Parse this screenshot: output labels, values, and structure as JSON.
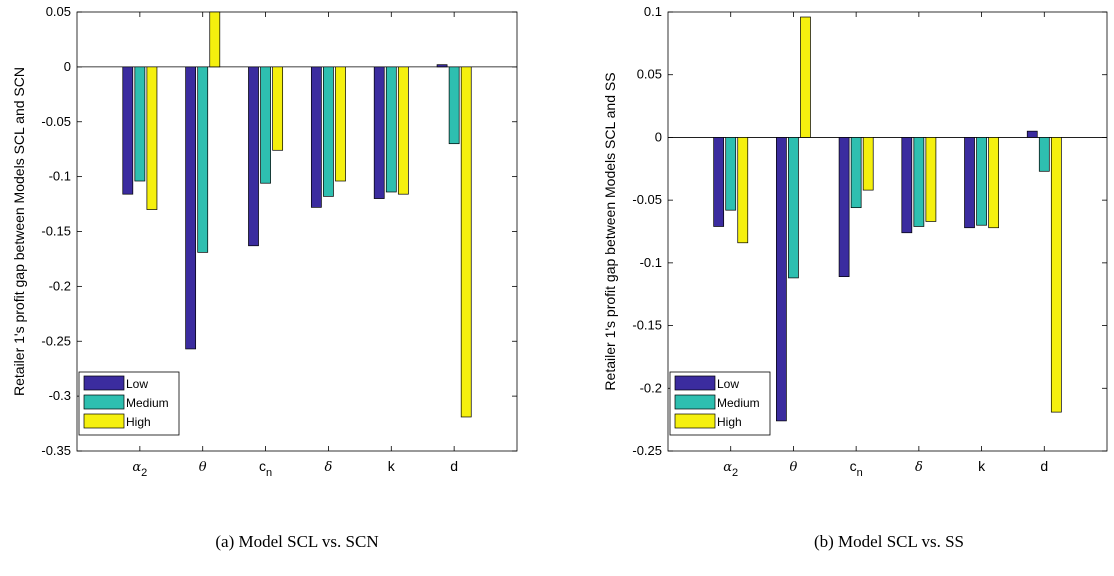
{
  "chart_data": [
    {
      "type": "bar",
      "ylabel": "Retailer 1's profit gap between Models SCL and SCN",
      "caption": "(a) Model SCL vs. SCN",
      "ylim": [
        -0.35,
        0.05
      ],
      "yticks": [
        0.05,
        0,
        -0.05,
        -0.1,
        -0.15,
        -0.2,
        -0.25,
        -0.3,
        -0.35
      ],
      "ytick_labels": [
        "0.05",
        "0",
        "-0.05",
        "-0.1",
        "-0.15",
        "-0.2",
        "-0.25",
        "-0.3",
        "-0.35"
      ],
      "categories": [
        {
          "base": "α",
          "sub": "2",
          "style": "math"
        },
        {
          "base": "θ",
          "sub": "",
          "style": "math"
        },
        {
          "base": "c",
          "sub": "n",
          "style": "sans"
        },
        {
          "base": "δ",
          "sub": "",
          "style": "math"
        },
        {
          "base": "k",
          "sub": "",
          "style": "sans"
        },
        {
          "base": "d",
          "sub": "",
          "style": "sans"
        }
      ],
      "series": [
        {
          "name": "Low",
          "color": "#3b2c9f",
          "values": [
            -0.116,
            -0.257,
            -0.163,
            -0.128,
            -0.12,
            0.002
          ]
        },
        {
          "name": "Medium",
          "color": "#2ebfb0",
          "values": [
            -0.104,
            -0.169,
            -0.106,
            -0.118,
            -0.114,
            -0.07
          ]
        },
        {
          "name": "High",
          "color": "#f5f00e",
          "values": [
            -0.13,
            0.05,
            -0.076,
            -0.104,
            -0.116,
            -0.319
          ]
        }
      ],
      "legend_position": "bottom-left",
      "grid": false
    },
    {
      "type": "bar",
      "ylabel": "Retailer 1's profit gap between Models SCL and SS",
      "caption": "(b) Model SCL vs. SS",
      "ylim": [
        -0.25,
        0.1
      ],
      "yticks": [
        0.1,
        0.05,
        0,
        -0.05,
        -0.1,
        -0.15,
        -0.2,
        -0.25
      ],
      "ytick_labels": [
        "0.1",
        "0.05",
        "0",
        "-0.05",
        "-0.1",
        "-0.15",
        "-0.2",
        "-0.25"
      ],
      "categories": [
        {
          "base": "α",
          "sub": "2",
          "style": "math"
        },
        {
          "base": "θ",
          "sub": "",
          "style": "math"
        },
        {
          "base": "c",
          "sub": "n",
          "style": "sans"
        },
        {
          "base": "δ",
          "sub": "",
          "style": "math"
        },
        {
          "base": "k",
          "sub": "",
          "style": "sans"
        },
        {
          "base": "d",
          "sub": "",
          "style": "sans"
        }
      ],
      "series": [
        {
          "name": "Low",
          "color": "#3b2c9f",
          "values": [
            -0.071,
            -0.226,
            -0.111,
            -0.076,
            -0.072,
            0.005
          ]
        },
        {
          "name": "Medium",
          "color": "#2ebfb0",
          "values": [
            -0.058,
            -0.112,
            -0.056,
            -0.071,
            -0.07,
            -0.027
          ]
        },
        {
          "name": "High",
          "color": "#f5f00e",
          "values": [
            -0.084,
            0.096,
            -0.042,
            -0.067,
            -0.072,
            -0.219
          ]
        }
      ],
      "legend_position": "bottom-left",
      "grid": false
    }
  ]
}
